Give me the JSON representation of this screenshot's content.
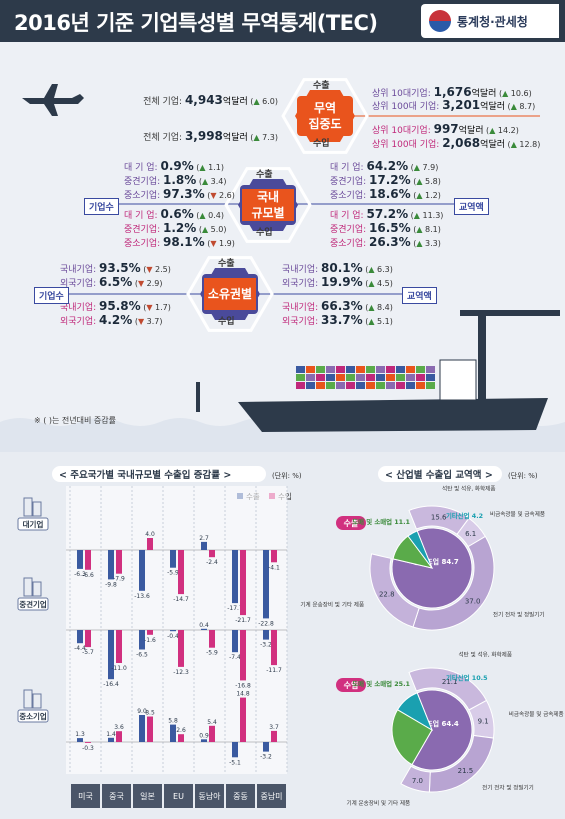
{
  "header": {
    "title": "2016년 기준 기업특성별 무역통계(TEC)",
    "logo": "통계청·관세청"
  },
  "stats": {
    "center1": {
      "top": "수출",
      "main": "무역\n집중도",
      "bottom": "수입"
    },
    "center2": {
      "top": "수출",
      "main": "국내\n규모별",
      "bottom": "수입"
    },
    "center3": {
      "top": "수출",
      "main": "소유권별",
      "bottom": "수입"
    },
    "left_tag2": "기업수",
    "left_tag3": "기업수",
    "right_tag2": "교역액",
    "right_tag3": "교역액",
    "conc": {
      "exp_all": {
        "label": "전체 기업:",
        "value": "4,943",
        "unit": "억달러",
        "chg": "6.0",
        "dir": "up"
      },
      "imp_all": {
        "label": "전체 기업:",
        "value": "3,998",
        "unit": "억달러",
        "chg": "7.3",
        "dir": "up"
      },
      "exp_top10": {
        "label": "상위 10대기업:",
        "value": "1,676",
        "unit": "억달러",
        "chg": "10.6",
        "dir": "up"
      },
      "exp_top100": {
        "label": "상위 100대 기업:",
        "value": "3,201",
        "unit": "억달러",
        "chg": "8.7",
        "dir": "up"
      },
      "imp_top10": {
        "label": "상위 10대기업:",
        "value": "997",
        "unit": "억달러",
        "chg": "14.2",
        "dir": "up"
      },
      "imp_top100": {
        "label": "상위 100대 기업:",
        "value": "2,068",
        "unit": "억달러",
        "chg": "12.8",
        "dir": "up"
      }
    },
    "size_cnt_exp": [
      {
        "label": "대 기 업:",
        "value": "0.9%",
        "chg": "1.1",
        "dir": "up"
      },
      {
        "label": "중견기업:",
        "value": "1.8%",
        "chg": "3.4",
        "dir": "up"
      },
      {
        "label": "중소기업:",
        "value": "97.3%",
        "chg": "2.6",
        "dir": "dn"
      }
    ],
    "size_cnt_imp": [
      {
        "label": "대 기 업:",
        "value": "0.6%",
        "chg": "0.4",
        "dir": "up"
      },
      {
        "label": "중견기업:",
        "value": "1.2%",
        "chg": "5.0",
        "dir": "up"
      },
      {
        "label": "중소기업:",
        "value": "98.1%",
        "chg": "1.9",
        "dir": "dn"
      }
    ],
    "size_amt_exp": [
      {
        "label": "대 기 업:",
        "value": "64.2%",
        "chg": "7.9",
        "dir": "up"
      },
      {
        "label": "중견기업:",
        "value": "17.2%",
        "chg": "5.8",
        "dir": "up"
      },
      {
        "label": "중소기업:",
        "value": "18.6%",
        "chg": "1.2",
        "dir": "up"
      }
    ],
    "size_amt_imp": [
      {
        "label": "대 기 업:",
        "value": "57.2%",
        "chg": "11.3",
        "dir": "up"
      },
      {
        "label": "중견기업:",
        "value": "16.5%",
        "chg": "8.1",
        "dir": "up"
      },
      {
        "label": "중소기업:",
        "value": "26.3%",
        "chg": "3.3",
        "dir": "up"
      }
    ],
    "own_cnt_exp": [
      {
        "label": "국내기업:",
        "value": "93.5%",
        "chg": "2.5",
        "dir": "dn"
      },
      {
        "label": "외국기업:",
        "value": "6.5%",
        "chg": "2.9",
        "dir": "dn"
      }
    ],
    "own_cnt_imp": [
      {
        "label": "국내기업:",
        "value": "95.8%",
        "chg": "1.7",
        "dir": "dn"
      },
      {
        "label": "외국기업:",
        "value": "4.2%",
        "chg": "3.7",
        "dir": "dn"
      }
    ],
    "own_amt_exp": [
      {
        "label": "국내기업:",
        "value": "80.1%",
        "chg": "6.3",
        "dir": "up"
      },
      {
        "label": "외국기업:",
        "value": "19.9%",
        "chg": "4.5",
        "dir": "up"
      }
    ],
    "own_amt_imp": [
      {
        "label": "국내기업:",
        "value": "66.3%",
        "chg": "8.4",
        "dir": "up"
      },
      {
        "label": "외국기업:",
        "value": "33.7%",
        "chg": "5.1",
        "dir": "up"
      }
    ],
    "note": "※ (   )는 전년대비 증감률"
  },
  "colors": {
    "export": "#3a5aa0",
    "import": "#d1307f",
    "accent": "#e9541d",
    "donut_dark": "#8a6ab0",
    "donut_light": "#c9b8dd",
    "green": "#5aab4a",
    "teal": "#1aa0b0"
  },
  "chart_data": [
    {
      "type": "bar",
      "title": "주요국가별 국내규모별 수출입 증감률",
      "unit": "(단위: %)",
      "legend": [
        "수출",
        "수입"
      ],
      "categories": [
        "미국",
        "중국",
        "일본",
        "EU",
        "동남아",
        "중동",
        "중남미"
      ],
      "groups": [
        {
          "name": "대기업",
          "series": [
            {
              "name": "수출",
              "values": [
                -6.3,
                -9.8,
                -13.6,
                -5.9,
                2.7,
                -17.7,
                -22.8
              ]
            },
            {
              "name": "수입",
              "values": [
                -6.6,
                -7.9,
                4.0,
                -14.7,
                -2.4,
                -21.7,
                -4.1
              ]
            }
          ]
        },
        {
          "name": "중견기업",
          "series": [
            {
              "name": "수출",
              "values": [
                -4.4,
                -16.4,
                -6.5,
                -0.4,
                0.4,
                -7.4,
                -3.2
              ]
            },
            {
              "name": "수입",
              "values": [
                -5.7,
                -11.0,
                -1.6,
                -12.3,
                -5.9,
                -16.8,
                -11.7
              ]
            }
          ]
        },
        {
          "name": "중소기업",
          "series": [
            {
              "name": "수출",
              "values": [
                1.3,
                1.4,
                9.0,
                5.8,
                0.9,
                -5.1,
                -3.2
              ]
            },
            {
              "name": "수입",
              "values": [
                -0.3,
                3.6,
                8.5,
                2.6,
                5.4,
                14.8,
                3.7
              ]
            }
          ]
        }
      ]
    },
    {
      "type": "pie",
      "title": "산업별 수출입 교역액",
      "unit": "(단위: %)",
      "charts": [
        {
          "name": "수출",
          "inner": [
            {
              "label": "공제조업",
              "value": 84.7
            },
            {
              "label": "도매 및 소매업",
              "value": 11.1
            },
            {
              "label": "기타산업",
              "value": 4.2
            }
          ],
          "outer": [
            {
              "label": "석탄 및 석유, 화학제품",
              "value": 15.6
            },
            {
              "label": "비금속광물 및 금속제품",
              "value": 6.1
            },
            {
              "label": "전기 전자 및 정밀기기",
              "value": 37.0
            },
            {
              "label": "기계 운송장비 및 기타 제품",
              "value": 22.8
            }
          ]
        },
        {
          "name": "수입",
          "inner": [
            {
              "label": "공제조업",
              "value": 64.4
            },
            {
              "label": "도매 및 소매업",
              "value": 25.1
            },
            {
              "label": "기타산업",
              "value": 10.5
            }
          ],
          "outer": [
            {
              "label": "석탄 및 석유, 화학제품",
              "value": 21.1
            },
            {
              "label": "비금속광물 및 금속제품",
              "value": 9.1
            },
            {
              "label": "전기 전자 및 정밀기기",
              "value": 21.5
            },
            {
              "label": "기계 운송장비 및 기타 제품",
              "value": 7.0
            }
          ]
        }
      ]
    }
  ]
}
